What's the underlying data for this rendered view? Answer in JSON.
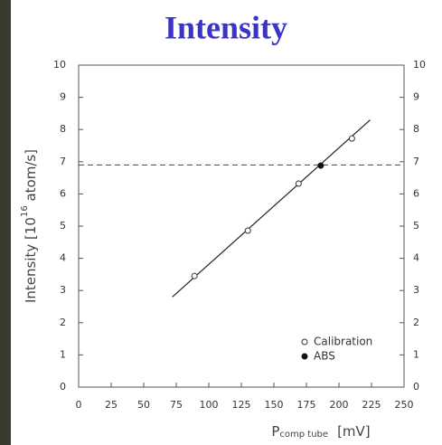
{
  "chart_data": {
    "type": "scatter",
    "title": "Intensity",
    "ylabel": {
      "main": "Intensity [10",
      "superscript": "16",
      "rest": " atom/s]"
    },
    "xlabel": {
      "main": "P",
      "subscript": "comp tube",
      "unit": "[mV]"
    },
    "xlim": [
      0,
      250
    ],
    "xticks": [
      0,
      25,
      50,
      75,
      100,
      125,
      150,
      175,
      200,
      225,
      250
    ],
    "ylim": [
      0,
      10
    ],
    "yticks": [
      0,
      1,
      2,
      3,
      4,
      5,
      6,
      7,
      8,
      9,
      10
    ],
    "y2lim": [
      0,
      10
    ],
    "y2ticks": [
      0,
      1,
      2,
      3,
      4,
      5,
      6,
      7,
      8,
      9,
      10
    ],
    "series": [
      {
        "name": "Calibration",
        "color": "#333333",
        "marker": "open",
        "x": [
          89,
          130,
          169,
          210
        ],
        "values": [
          3.45,
          4.86,
          6.32,
          7.72
        ]
      },
      {
        "name": "ABS",
        "color": "#111111",
        "marker": "filled",
        "x": [
          186
        ],
        "values": [
          6.88
        ]
      }
    ],
    "fit_line": {
      "x": [
        72,
        224
      ],
      "values": [
        2.8,
        8.3
      ]
    },
    "reference_line": 6.9
  }
}
